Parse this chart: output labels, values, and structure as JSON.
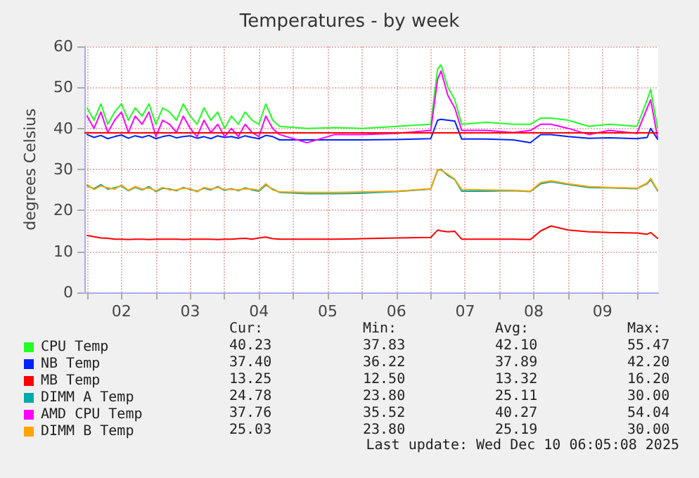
{
  "chart_data": {
    "type": "line",
    "title": "Temperatures - by week",
    "ylabel": "degrees Celsius",
    "x": [
      2.0,
      2.1,
      2.2,
      2.3,
      2.4,
      2.5,
      2.6,
      2.7,
      2.8,
      2.9,
      3.0,
      3.1,
      3.2,
      3.3,
      3.4,
      3.5,
      3.6,
      3.7,
      3.8,
      3.9,
      4.0,
      4.1,
      4.2,
      4.3,
      4.4,
      4.5,
      4.6,
      4.7,
      4.8,
      5.2,
      5.6,
      6.0,
      6.5,
      7.0,
      7.1,
      7.15,
      7.25,
      7.35,
      7.45,
      7.8,
      8.2,
      8.45,
      8.6,
      8.75,
      9.0,
      9.3,
      9.6,
      10.0,
      10.15,
      10.2,
      10.3
    ],
    "series": [
      {
        "name": "CPU Temp",
        "color": "#22ff22",
        "values": [
          45,
          42,
          46,
          41,
          44,
          46,
          42,
          45,
          43,
          46,
          41,
          45,
          44,
          42,
          46,
          43,
          41,
          45,
          42,
          44,
          40,
          43,
          41,
          44,
          42,
          41,
          46,
          42,
          40.5,
          40,
          40.2,
          40,
          40.5,
          41,
          54.5,
          55.5,
          50,
          47,
          41,
          41.5,
          41,
          41,
          42.5,
          42.5,
          42,
          40.5,
          41,
          40.5,
          47,
          49.5,
          40.2
        ]
      },
      {
        "name": "NB Temp",
        "color": "#0022ff",
        "values": [
          38.5,
          37.8,
          38.3,
          37.5,
          38,
          38.4,
          37.6,
          38.2,
          37.8,
          38.3,
          37.5,
          38,
          38.3,
          37.7,
          38,
          38.2,
          37.6,
          38,
          37.5,
          38.2,
          37.8,
          38,
          37.6,
          38.2,
          37.8,
          37.5,
          38.3,
          38,
          37.2,
          37.2,
          37.2,
          37.2,
          37.3,
          37.5,
          42,
          42.2,
          42,
          41.8,
          37.4,
          37.4,
          37.2,
          36.5,
          38.5,
          38.5,
          38,
          37.6,
          37.7,
          37.5,
          37.8,
          40,
          37.4
        ]
      },
      {
        "name": "MB Temp",
        "color": "#ff0000",
        "values": [
          13.9,
          13.6,
          13.3,
          13.2,
          13,
          13,
          12.9,
          13,
          13,
          12.9,
          13,
          13,
          13,
          13,
          12.9,
          13,
          13,
          13,
          13,
          12.9,
          13,
          13,
          13.1,
          13.2,
          13,
          13.3,
          13.5,
          13.1,
          13,
          13,
          13,
          13.1,
          13.3,
          13.4,
          15.2,
          15,
          14.8,
          14.9,
          13,
          13,
          13,
          12.9,
          15,
          16.2,
          15.2,
          14.8,
          14.6,
          14.5,
          14.2,
          14.6,
          13.2
        ]
      },
      {
        "name": "DIMM A Temp",
        "color": "#00aaaa",
        "values": [
          26,
          25.3,
          26.3,
          25.2,
          25.5,
          26,
          24.8,
          25.6,
          25,
          25.8,
          24.6,
          25.4,
          25.2,
          24.8,
          25.6,
          25.1,
          24.7,
          25.4,
          25,
          25.8,
          24.9,
          25.3,
          24.8,
          25.5,
          25,
          24.7,
          26.2,
          25.2,
          24.4,
          24.1,
          24.1,
          24.2,
          24.6,
          25.2,
          29.8,
          30,
          28.5,
          27.5,
          24.7,
          24.7,
          24.8,
          24.6,
          26.5,
          27,
          26.3,
          25.6,
          25.5,
          25.3,
          26.5,
          27.5,
          24.8
        ]
      },
      {
        "name": "AMD CPU Temp",
        "color": "#ff00ff",
        "values": [
          43,
          40,
          44,
          39,
          42,
          44,
          39,
          43,
          41,
          44,
          38,
          42,
          41,
          39,
          43,
          40,
          38,
          42,
          39,
          41,
          38,
          40,
          38,
          41,
          39,
          38,
          43,
          40,
          38.5,
          36.5,
          38.5,
          38.5,
          38.8,
          39.5,
          52,
          54,
          48,
          45,
          39.5,
          39.5,
          39,
          39.5,
          41,
          41,
          40,
          38.5,
          39.5,
          38.8,
          45,
          47,
          37.8
        ]
      },
      {
        "name": "DIMM B Temp",
        "color": "#ffa500",
        "values": [
          26.3,
          25.1,
          26,
          25.5,
          25.2,
          26.2,
          24.9,
          25.8,
          25.2,
          25.5,
          24.8,
          25.6,
          25,
          25,
          25.4,
          25.3,
          24.5,
          25.6,
          25.2,
          25.6,
          25.1,
          25.1,
          25,
          25.3,
          25.2,
          24.9,
          26.5,
          25,
          24.5,
          24.4,
          24.4,
          24.5,
          24.7,
          25.3,
          30,
          29.8,
          28.8,
          27.6,
          25.1,
          25,
          24.9,
          24.7,
          26.8,
          27.2,
          26.5,
          25.8,
          25.6,
          25.4,
          26.7,
          27.8,
          25
        ]
      }
    ],
    "xlim": [
      1.96,
      10.31
    ],
    "xticks": [
      {
        "value": 2,
        "label": null
      },
      {
        "value": 2.5,
        "label": "02"
      },
      {
        "value": 3,
        "label": null
      },
      {
        "value": 3.5,
        "label": "03"
      },
      {
        "value": 4,
        "label": null
      },
      {
        "value": 4.5,
        "label": "04"
      },
      {
        "value": 5,
        "label": null
      },
      {
        "value": 5.5,
        "label": "05"
      },
      {
        "value": 6,
        "label": null
      },
      {
        "value": 6.5,
        "label": "06"
      },
      {
        "value": 7,
        "label": null
      },
      {
        "value": 7.5,
        "label": "07"
      },
      {
        "value": 8,
        "label": null
      },
      {
        "value": 8.5,
        "label": "08"
      },
      {
        "value": 9,
        "label": null
      },
      {
        "value": 9.5,
        "label": "09"
      },
      {
        "value": 10,
        "label": null
      }
    ],
    "ylim": [
      0,
      60
    ],
    "yticks": [
      0,
      10,
      20,
      30,
      40,
      50,
      60
    ],
    "ref_lines": [
      {
        "axis": "y",
        "value": 39,
        "color": "#ff0000"
      }
    ],
    "grid": true,
    "legend": "bottom left",
    "annotations": [
      "Cur:",
      "Min:",
      "Avg:",
      "Max:",
      "40.23",
      "37.83",
      "42.10",
      "55.47",
      "37.40",
      "36.22",
      "37.89",
      "42.20",
      "13.25",
      "12.50",
      "13.32",
      "16.20",
      "24.78",
      "23.80",
      "25.11",
      "30.00",
      "37.76",
      "35.52",
      "40.27",
      "54.04",
      "25.03",
      "23.80",
      "25.19",
      "30.00",
      "Last update: Wed Dec 10 06:05:08 2025"
    ]
  }
}
